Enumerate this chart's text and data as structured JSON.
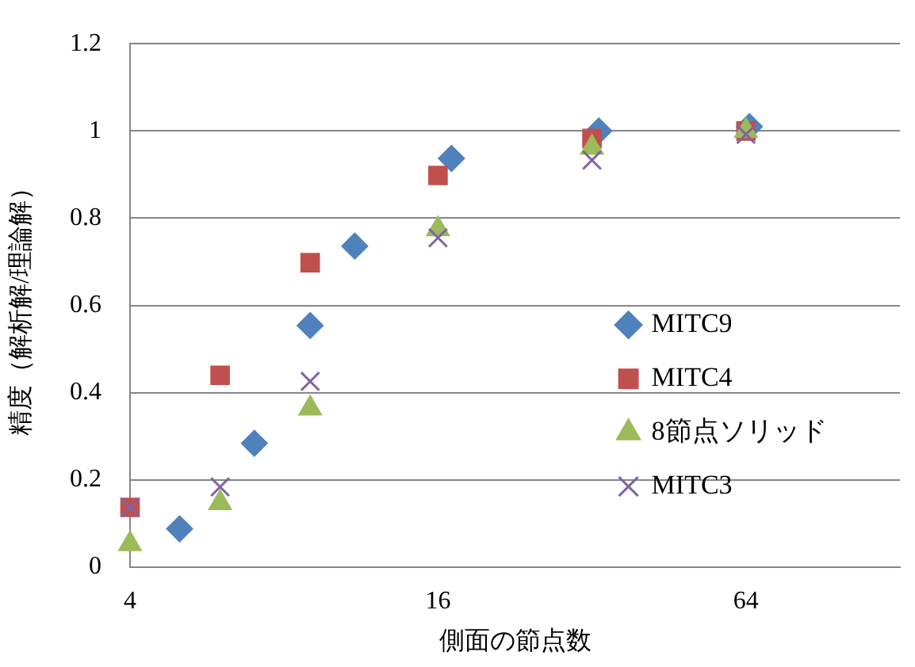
{
  "chart_data": {
    "type": "scatter",
    "xlabel": "側面の節点数",
    "ylabel": "精度（解析解/理論解）",
    "log": "x",
    "xlim": [
      4,
      128
    ],
    "xticks": [
      4,
      16,
      64
    ],
    "ylim": [
      0,
      1.2
    ],
    "yticks": [
      0,
      0.2,
      0.4,
      0.6,
      0.8,
      1,
      1.2
    ],
    "grid": "y",
    "legend": "right",
    "series": [
      {
        "name": "MITC9",
        "color": "#4f81bd",
        "marker": "diamond",
        "x": [
          5,
          7,
          9,
          11,
          17,
          33,
          65
        ],
        "values": [
          0.088,
          0.284,
          0.554,
          0.736,
          0.937,
          1.0,
          1.01
        ]
      },
      {
        "name": "MITC4",
        "color": "#c0504d",
        "marker": "square",
        "x": [
          4,
          6,
          9,
          16,
          32,
          64
        ],
        "values": [
          0.137,
          0.44,
          0.698,
          0.898,
          0.983,
          1.0
        ]
      },
      {
        "name": "8節点ソリッド",
        "color": "#9bbb59",
        "marker": "triangle",
        "x": [
          4,
          6,
          9,
          16,
          32,
          64
        ],
        "values": [
          0.053,
          0.147,
          0.364,
          0.775,
          0.962,
          1.0
        ]
      },
      {
        "name": "MITC3",
        "color": "#8064a2",
        "marker": "cross",
        "x": [
          4,
          6,
          9,
          16,
          32,
          64
        ],
        "values": [
          0.137,
          0.184,
          0.426,
          0.755,
          0.933,
          0.992
        ]
      }
    ]
  }
}
